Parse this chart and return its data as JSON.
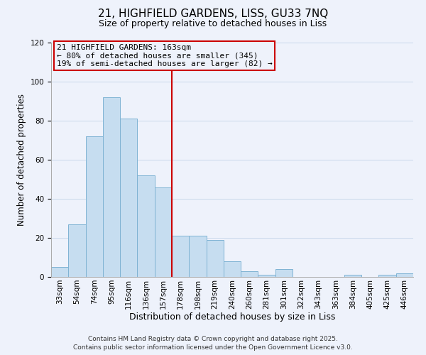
{
  "title_line1": "21, HIGHFIELD GARDENS, LISS, GU33 7NQ",
  "title_line2": "Size of property relative to detached houses in Liss",
  "xlabel": "Distribution of detached houses by size in Liss",
  "ylabel": "Number of detached properties",
  "bar_labels": [
    "33sqm",
    "54sqm",
    "74sqm",
    "95sqm",
    "116sqm",
    "136sqm",
    "157sqm",
    "178sqm",
    "198sqm",
    "219sqm",
    "240sqm",
    "260sqm",
    "281sqm",
    "301sqm",
    "322sqm",
    "343sqm",
    "363sqm",
    "384sqm",
    "405sqm",
    "425sqm",
    "446sqm"
  ],
  "bar_heights": [
    5,
    27,
    72,
    92,
    81,
    52,
    46,
    21,
    21,
    19,
    8,
    3,
    1,
    4,
    0,
    0,
    0,
    1,
    0,
    1,
    2
  ],
  "bar_color": "#c6ddf0",
  "bar_edge_color": "#7fb3d3",
  "highlight_bar_index": 6,
  "vline_color": "#cc0000",
  "vline_x": 6.5,
  "ylim": [
    0,
    120
  ],
  "yticks": [
    0,
    20,
    40,
    60,
    80,
    100,
    120
  ],
  "annotation_title": "21 HIGHFIELD GARDENS: 163sqm",
  "annotation_line1": "← 80% of detached houses are smaller (345)",
  "annotation_line2": "19% of semi-detached houses are larger (82) →",
  "footnote1": "Contains HM Land Registry data © Crown copyright and database right 2025.",
  "footnote2": "Contains public sector information licensed under the Open Government Licence v3.0.",
  "background_color": "#eef2fb",
  "grid_color": "#c8d8ea",
  "title_fontsize": 11,
  "subtitle_fontsize": 9,
  "ylabel_fontsize": 8.5,
  "xlabel_fontsize": 9,
  "tick_fontsize": 7.5,
  "annotation_fontsize": 8,
  "footnote_fontsize": 6.5
}
